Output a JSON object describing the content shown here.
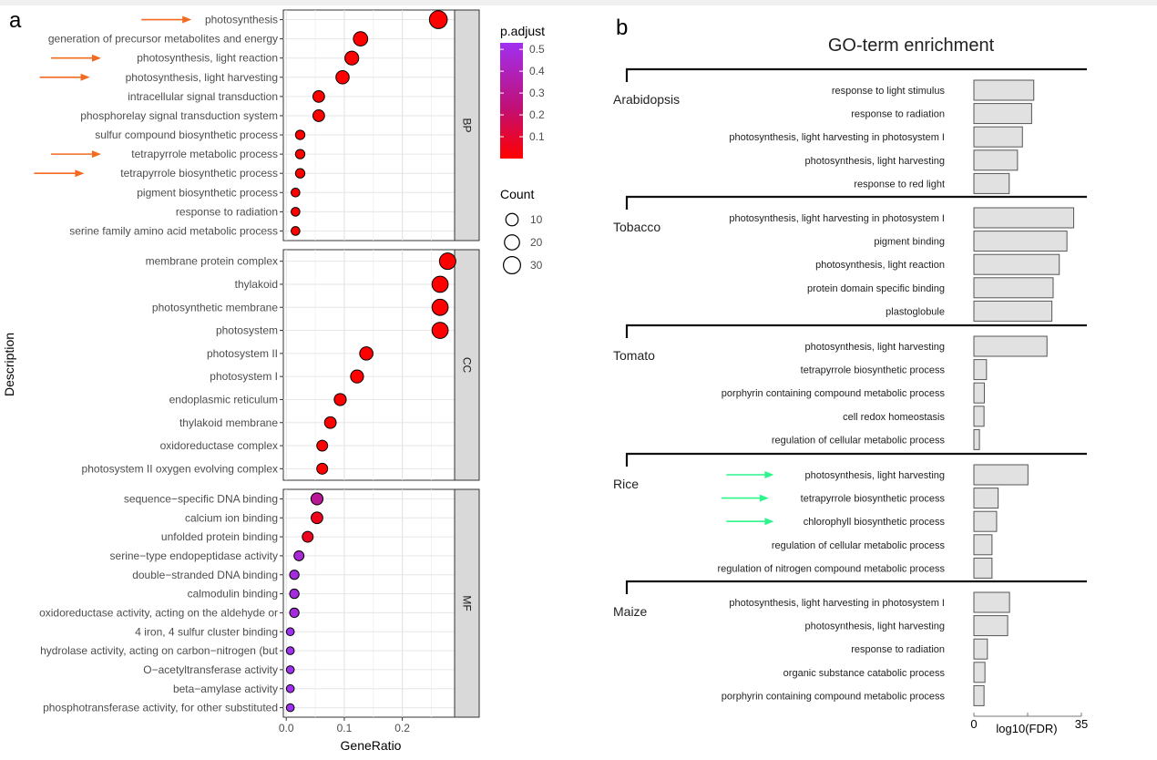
{
  "panel_a": {
    "label": "a",
    "y_axis_label": "Description",
    "x_axis_label": "GeneRatio",
    "legend_color_title": "p.adjust",
    "legend_size_title": "Count"
  },
  "panel_b": {
    "label": "b",
    "title": "GO-term enrichment",
    "x_axis_label": "log10(FDR)"
  },
  "chart_data": [
    {
      "type": "scatter",
      "title": "",
      "xlabel": "GeneRatio",
      "ylabel": "Description",
      "xlim": [
        -0.005,
        0.29
      ],
      "xticks": [
        0,
        0.1,
        0.2
      ],
      "xtick_labels": [
        "0.0",
        "0.1",
        "0.2"
      ],
      "grid": true,
      "color_legend": {
        "title": "p.adjust",
        "ticks": [
          0.5,
          0.4,
          0.3,
          0.2,
          0.1
        ],
        "tick_labels": [
          "0.5",
          "0.4",
          "0.3",
          "0.2",
          "0.1"
        ],
        "colors": {
          "low": "#ff0000",
          "mid": "#c01078",
          "high": "#a030f0"
        }
      },
      "size_legend": {
        "title": "Count",
        "values": [
          10,
          20,
          30
        ],
        "labels": [
          "10",
          "20",
          "30"
        ]
      },
      "facets": [
        {
          "name": "BP",
          "terms": [
            {
              "label": "photosynthesis",
              "ratio": 0.262,
              "count": 34,
              "p": 0.001,
              "arrow": true
            },
            {
              "label": "generation of precursor metabolites and energy",
              "ratio": 0.128,
              "count": 17,
              "p": 0.003,
              "arrow": false
            },
            {
              "label": "photosynthesis, light reaction",
              "ratio": 0.113,
              "count": 15,
              "p": 0.003,
              "arrow": true
            },
            {
              "label": "photosynthesis, light harvesting",
              "ratio": 0.097,
              "count": 13,
              "p": 0.004,
              "arrow": true
            },
            {
              "label": "intracellular signal transduction",
              "ratio": 0.056,
              "count": 8,
              "p": 0.01,
              "arrow": false
            },
            {
              "label": "phosphorelay signal transduction system",
              "ratio": 0.056,
              "count": 8,
              "p": 0.01,
              "arrow": false
            },
            {
              "label": "sulfur compound biosynthetic process",
              "ratio": 0.024,
              "count": 3,
              "p": 0.02,
              "arrow": false
            },
            {
              "label": "tetrapyrrole metabolic process",
              "ratio": 0.024,
              "count": 3,
              "p": 0.02,
              "arrow": true
            },
            {
              "label": "tetrapyrrole biosynthetic process",
              "ratio": 0.024,
              "count": 3,
              "p": 0.02,
              "arrow": true
            },
            {
              "label": "pigment biosynthetic process",
              "ratio": 0.016,
              "count": 2,
              "p": 0.03,
              "arrow": false
            },
            {
              "label": "response to radiation",
              "ratio": 0.016,
              "count": 2,
              "p": 0.03,
              "arrow": false
            },
            {
              "label": "serine family amino acid metabolic process",
              "ratio": 0.016,
              "count": 2,
              "p": 0.03,
              "arrow": false
            }
          ]
        },
        {
          "name": "CC",
          "terms": [
            {
              "label": "membrane protein complex",
              "ratio": 0.278,
              "count": 26,
              "p": 0.001
            },
            {
              "label": "thylakoid",
              "ratio": 0.265,
              "count": 25,
              "p": 0.001
            },
            {
              "label": "photosynthetic membrane",
              "ratio": 0.265,
              "count": 25,
              "p": 0.001
            },
            {
              "label": "photosystem",
              "ratio": 0.265,
              "count": 25,
              "p": 0.001
            },
            {
              "label": "photosystem II",
              "ratio": 0.138,
              "count": 13,
              "p": 0.005
            },
            {
              "label": "photosystem I",
              "ratio": 0.122,
              "count": 12,
              "p": 0.005
            },
            {
              "label": "endoplasmic reticulum",
              "ratio": 0.093,
              "count": 9,
              "p": 0.01
            },
            {
              "label": "thylakoid membrane",
              "ratio": 0.076,
              "count": 8,
              "p": 0.01
            },
            {
              "label": "oxidoreductase complex",
              "ratio": 0.062,
              "count": 6,
              "p": 0.015
            },
            {
              "label": "photosystem II oxygen evolving complex",
              "ratio": 0.062,
              "count": 6,
              "p": 0.015
            }
          ]
        },
        {
          "name": "MF",
          "terms": [
            {
              "label": "sequence−specific DNA binding",
              "ratio": 0.053,
              "count": 9,
              "p": 0.3
            },
            {
              "label": "calcium ion binding",
              "ratio": 0.053,
              "count": 8,
              "p": 0.1
            },
            {
              "label": "unfolded protein binding",
              "ratio": 0.037,
              "count": 6,
              "p": 0.1
            },
            {
              "label": "serine−type endopeptidase activity",
              "ratio": 0.022,
              "count": 4,
              "p": 0.4
            },
            {
              "label": "double−stranded DNA binding",
              "ratio": 0.014,
              "count": 3,
              "p": 0.42
            },
            {
              "label": "calmodulin binding",
              "ratio": 0.014,
              "count": 3,
              "p": 0.42
            },
            {
              "label": "oxidoreductase activity, acting on the aldehyde or",
              "ratio": 0.014,
              "count": 3,
              "p": 0.42
            },
            {
              "label": "4 iron, 4 sulfur cluster binding",
              "ratio": 0.007,
              "count": 1,
              "p": 0.45
            },
            {
              "label": "hydrolase activity, acting on carbon−nitrogen (but",
              "ratio": 0.007,
              "count": 1,
              "p": 0.45
            },
            {
              "label": "O−acetyltransferase activity",
              "ratio": 0.007,
              "count": 1,
              "p": 0.45
            },
            {
              "label": "beta−amylase activity",
              "ratio": 0.007,
              "count": 1,
              "p": 0.45
            },
            {
              "label": "phosphotransferase activity, for other substituted",
              "ratio": 0.007,
              "count": 1,
              "p": 0.45
            }
          ]
        }
      ]
    },
    {
      "type": "bar",
      "orientation": "horizontal",
      "title": "GO-term enrichment",
      "xlabel": "log10(FDR)",
      "xlim": [
        0,
        35
      ],
      "xticks": [
        0,
        35
      ],
      "xtick_labels": [
        "0",
        "35"
      ],
      "groups": [
        {
          "name": "Arabidopsis",
          "terms": [
            {
              "label": "response to light stimulus",
              "value": 19.5
            },
            {
              "label": "response to radiation",
              "value": 18.8
            },
            {
              "label": "photosynthesis, light harvesting in photosystem I",
              "value": 15.8
            },
            {
              "label": "photosynthesis, light harvesting",
              "value": 14.2
            },
            {
              "label": "response to red light",
              "value": 11.5
            }
          ]
        },
        {
          "name": "Tobacco",
          "terms": [
            {
              "label": "photosynthesis, light harvesting in photosystem I",
              "value": 32.5
            },
            {
              "label": "pigment binding",
              "value": 30.3
            },
            {
              "label": "photosynthesis, light reaction",
              "value": 27.8
            },
            {
              "label": "protein domain specific binding",
              "value": 25.8
            },
            {
              "label": "plastoglobule",
              "value": 25.4
            }
          ]
        },
        {
          "name": "Tomato",
          "terms": [
            {
              "label": "photosynthesis, light harvesting",
              "value": 23.8
            },
            {
              "label": "tetrapyrrole biosynthetic process",
              "value": 4.1
            },
            {
              "label": "porphyrin  containing compound metabolic process",
              "value": 3.4
            },
            {
              "label": "cell redox homeostasis",
              "value": 3.3
            },
            {
              "label": "regulation of cellular metabolic process",
              "value": 1.8
            }
          ]
        },
        {
          "name": "Rice",
          "terms": [
            {
              "label": "photosynthesis, light harvesting",
              "value": 17.6,
              "arrow": true
            },
            {
              "label": "tetrapyrrole biosynthetic process",
              "value": 7.9,
              "arrow": true
            },
            {
              "label": "chlorophyll biosynthetic process",
              "value": 7.4,
              "arrow": true
            },
            {
              "label": "regulation of cellular metabolic process",
              "value": 5.9
            },
            {
              "label": "regulation of nitrogen compound metabolic process",
              "value": 5.9
            }
          ]
        },
        {
          "name": "Maize",
          "terms": [
            {
              "label": "photosynthesis, light harvesting in photosystem I",
              "value": 11.6
            },
            {
              "label": "photosynthesis, light harvesting",
              "value": 11.0
            },
            {
              "label": "response to radiation",
              "value": 4.4
            },
            {
              "label": "organic substance catabolic process",
              "value": 3.6
            },
            {
              "label": "porphyrin  containing compound metabolic process",
              "value": 3.3
            }
          ]
        }
      ]
    }
  ]
}
